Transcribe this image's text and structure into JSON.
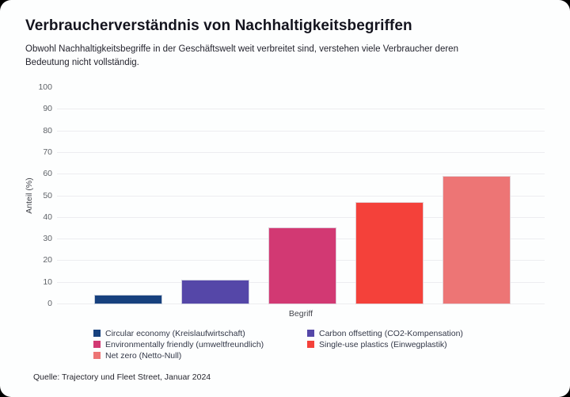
{
  "card": {
    "title": "Verbraucherverständnis von Nachhaltigkeitsbegriffen",
    "subtitle": "Obwohl Nachhaltigkeitsbegriffe in der Geschäftswelt weit verbreitet sind, verstehen viele Verbraucher deren Bedeutung nicht vollständig.",
    "source": "Quelle: Trajectory und Fleet Street, Januar 2024"
  },
  "chart_data": {
    "type": "bar",
    "title": "Verbraucherverständnis von Nachhaltigkeitsbegriffen",
    "xlabel": "Begriff",
    "ylabel": "Anteil (%)",
    "ylim": [
      0,
      100
    ],
    "ytick_step": 10,
    "yticks": [
      0,
      10,
      20,
      30,
      40,
      50,
      60,
      70,
      80,
      90,
      100
    ],
    "grid": true,
    "legend_position": "bottom",
    "categories": [
      "Circular economy (Kreislaufwirtschaft)",
      "Carbon offsetting (CO2-Kompensation)",
      "Environmentally friendly (umweltfreundlich)",
      "Single-use plastics (Einwegplastik)",
      "Net zero (Netto-Null)"
    ],
    "values": [
      4,
      11,
      35,
      47,
      59
    ],
    "colors": [
      "#17417e",
      "#5547a8",
      "#d23973",
      "#f4413a",
      "#ed7575"
    ]
  }
}
